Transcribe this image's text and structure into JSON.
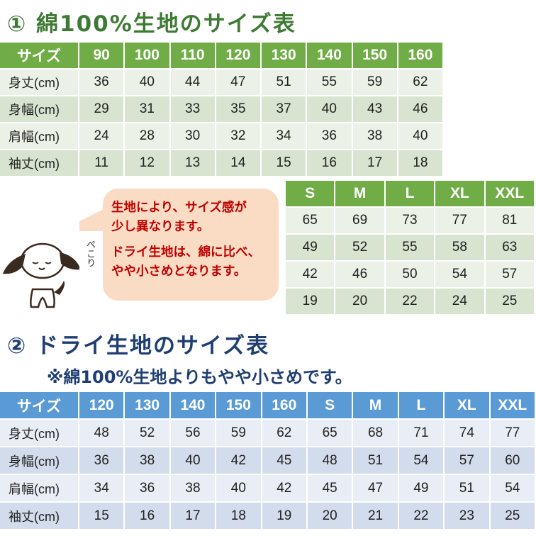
{
  "cotton": {
    "title": "① 綿100%生地のサイズ表",
    "header": [
      "サイズ",
      "90",
      "100",
      "110",
      "120",
      "130",
      "140",
      "150",
      "160"
    ],
    "rows": [
      [
        "身丈(cm)",
        "36",
        "40",
        "44",
        "47",
        "51",
        "55",
        "59",
        "62"
      ],
      [
        "身幅(cm)",
        "29",
        "31",
        "33",
        "35",
        "37",
        "40",
        "43",
        "46"
      ],
      [
        "肩幅(cm)",
        "24",
        "28",
        "30",
        "32",
        "34",
        "36",
        "38",
        "40"
      ],
      [
        "袖丈(cm)",
        "11",
        "12",
        "13",
        "14",
        "15",
        "16",
        "17",
        "18"
      ]
    ],
    "adult_header": [
      "S",
      "M",
      "L",
      "XL",
      "XXL"
    ],
    "adult_rows": [
      [
        "65",
        "69",
        "73",
        "77",
        "81"
      ],
      [
        "49",
        "52",
        "55",
        "58",
        "63"
      ],
      [
        "42",
        "46",
        "50",
        "54",
        "57"
      ],
      [
        "19",
        "20",
        "22",
        "24",
        "25"
      ]
    ],
    "color": "#70ad47"
  },
  "bubble": {
    "line1": "生地により、サイズ感が",
    "line2": "少し異なります。",
    "line3": "ドライ生地は、綿に比べ、",
    "line4": "やや小さめとなります。"
  },
  "dog": {
    "sound": "ぺこり"
  },
  "dry": {
    "title": "② ドライ生地のサイズ表",
    "note": "※綿100%生地よりもやや小さめです。",
    "header": [
      "サイズ",
      "120",
      "130",
      "140",
      "150",
      "160",
      "S",
      "M",
      "L",
      "XL",
      "XXL"
    ],
    "rows": [
      [
        "身丈(cm)",
        "48",
        "52",
        "56",
        "59",
        "62",
        "65",
        "68",
        "71",
        "74",
        "77"
      ],
      [
        "身幅(cm)",
        "36",
        "38",
        "40",
        "42",
        "45",
        "48",
        "51",
        "54",
        "57",
        "60"
      ],
      [
        "肩幅(cm)",
        "34",
        "36",
        "38",
        "40",
        "42",
        "45",
        "47",
        "49",
        "51",
        "54"
      ],
      [
        "袖丈(cm)",
        "15",
        "16",
        "17",
        "18",
        "19",
        "20",
        "21",
        "22",
        "23",
        "25"
      ]
    ],
    "color": "#5b9bd5"
  }
}
